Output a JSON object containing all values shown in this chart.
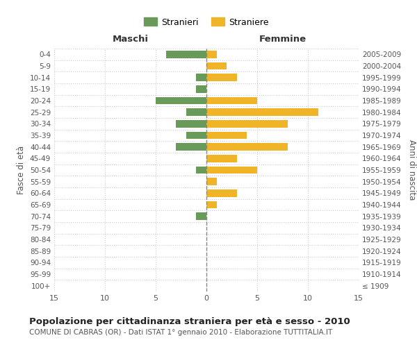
{
  "age_groups": [
    "100+",
    "95-99",
    "90-94",
    "85-89",
    "80-84",
    "75-79",
    "70-74",
    "65-69",
    "60-64",
    "55-59",
    "50-54",
    "45-49",
    "40-44",
    "35-39",
    "30-34",
    "25-29",
    "20-24",
    "15-19",
    "10-14",
    "5-9",
    "0-4"
  ],
  "birth_years": [
    "≤ 1909",
    "1910-1914",
    "1915-1919",
    "1920-1924",
    "1925-1929",
    "1930-1934",
    "1935-1939",
    "1940-1944",
    "1945-1949",
    "1950-1954",
    "1955-1959",
    "1960-1964",
    "1965-1969",
    "1970-1974",
    "1975-1979",
    "1980-1984",
    "1985-1989",
    "1990-1994",
    "1995-1999",
    "2000-2004",
    "2005-2009"
  ],
  "maschi": [
    0,
    0,
    0,
    0,
    0,
    0,
    1,
    0,
    0,
    0,
    1,
    0,
    3,
    2,
    3,
    2,
    5,
    1,
    1,
    0,
    4
  ],
  "femmine": [
    0,
    0,
    0,
    0,
    0,
    0,
    0,
    1,
    3,
    1,
    5,
    3,
    8,
    4,
    8,
    11,
    5,
    0,
    3,
    2,
    1
  ],
  "color_maschi": "#6a9a5a",
  "color_femmine": "#f0b429",
  "xlim": 15,
  "title": "Popolazione per cittadinanza straniera per età e sesso - 2010",
  "subtitle": "COMUNE DI CABRAS (OR) - Dati ISTAT 1° gennaio 2010 - Elaborazione TUTTITALIA.IT",
  "ylabel_left": "Fasce di età",
  "ylabel_right": "Anni di nascita",
  "xlabel_maschi": "Maschi",
  "xlabel_femmine": "Femmine",
  "legend_maschi": "Stranieri",
  "legend_femmine": "Straniere",
  "bg_color": "#ffffff",
  "grid_color": "#cccccc",
  "grid_style": "dotted",
  "tick_color": "#555555"
}
